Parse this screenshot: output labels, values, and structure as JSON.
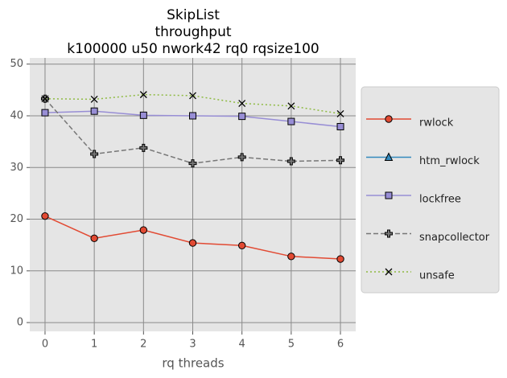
{
  "chart_data": {
    "type": "line",
    "title": [
      "SkipList",
      "throughput",
      "k100000 u50 nwork42 rq0 rqsize100"
    ],
    "xlabel": "rq threads",
    "x": [
      0,
      1,
      2,
      3,
      4,
      5,
      6
    ],
    "xlim": [
      -0.31,
      6.31
    ],
    "xticks": [
      0,
      1,
      2,
      3,
      4,
      5,
      6
    ],
    "ylim": [
      -1.7,
      51.2
    ],
    "yticks": [
      0,
      10,
      20,
      30,
      40,
      50
    ],
    "grid": true,
    "legend": "outside right",
    "series": [
      {
        "name": "rwlock",
        "color": "#E24A33",
        "marker": "circle",
        "dash": "solid",
        "values": [
          20.6,
          16.3,
          17.9,
          15.4,
          14.9,
          12.8,
          12.3
        ]
      },
      {
        "name": "htm_rwlock",
        "color": "#348ABD",
        "marker": "triangle",
        "dash": "solid",
        "values": [
          null,
          null,
          null,
          null,
          null,
          null,
          null
        ]
      },
      {
        "name": "lockfree",
        "color": "#988ED5",
        "marker": "square",
        "dash": "solid",
        "values": [
          40.6,
          40.9,
          40.1,
          40.0,
          39.9,
          38.9,
          37.9
        ]
      },
      {
        "name": "snapcollector",
        "color": "#777777",
        "marker": "plus",
        "dash": "dashed",
        "values": [
          43.3,
          32.6,
          33.8,
          30.8,
          32.0,
          31.2,
          31.4
        ]
      },
      {
        "name": "unsafe",
        "color": "#8EBA42",
        "marker": "x",
        "dash": "dotted",
        "values": [
          43.3,
          43.2,
          44.1,
          43.9,
          42.4,
          41.9,
          40.4
        ]
      }
    ]
  }
}
